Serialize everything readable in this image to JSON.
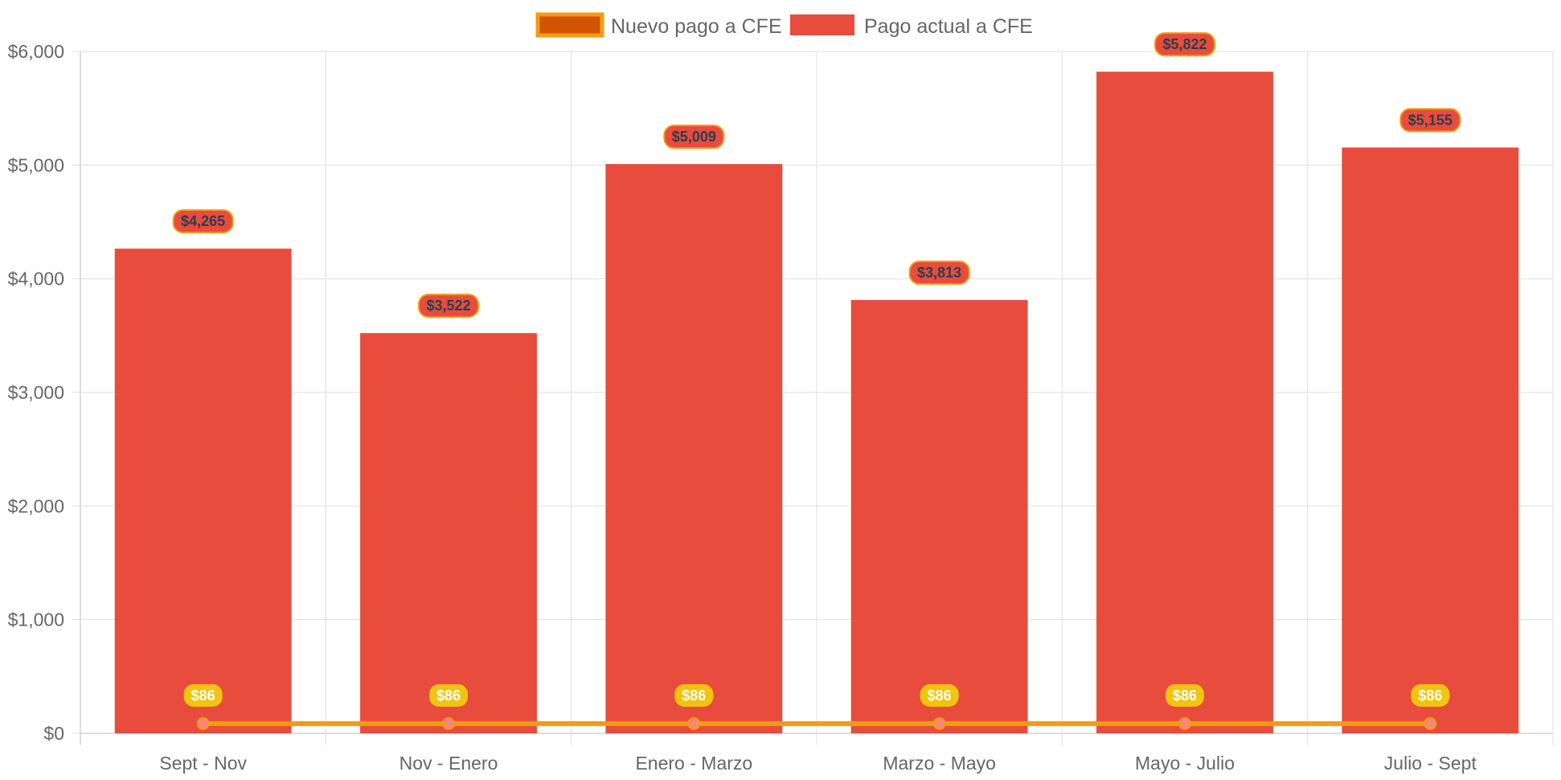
{
  "chart_data": {
    "type": "bar",
    "categories": [
      "Sept - Nov",
      "Nov - Enero",
      "Enero - Marzo",
      "Marzo - Mayo",
      "Mayo - Julio",
      "Julio - Sept"
    ],
    "series": [
      {
        "name": "Nuevo pago a CFE",
        "kind": "line",
        "values": [
          86,
          86,
          86,
          86,
          86,
          86
        ],
        "labels": [
          "$86",
          "$86",
          "$86",
          "$86",
          "$86",
          "$86"
        ],
        "color": "#f39c12",
        "fill": "#d35400",
        "point_color": "#f7877a",
        "label_bg": "#f1c40f",
        "label_text_color": "#ffffff"
      },
      {
        "name": "Pago actual a CFE",
        "kind": "bar",
        "values": [
          4265,
          3522,
          5009,
          3813,
          5822,
          5155
        ],
        "labels": [
          "$4,265",
          "$3,522",
          "$5,009",
          "$3,813",
          "$5,822",
          "$5,155"
        ],
        "color": "#e74c3c",
        "label_border": "#f39c12",
        "label_text_color": "#2c3e50"
      }
    ],
    "yticks": [
      "$0",
      "$1,000",
      "$2,000",
      "$3,000",
      "$4,000",
      "$5,000",
      "$6,000"
    ],
    "ylim": [
      0,
      6000
    ],
    "grid": true,
    "legend_position": "top-center",
    "title": "",
    "xlabel": "",
    "ylabel": ""
  }
}
